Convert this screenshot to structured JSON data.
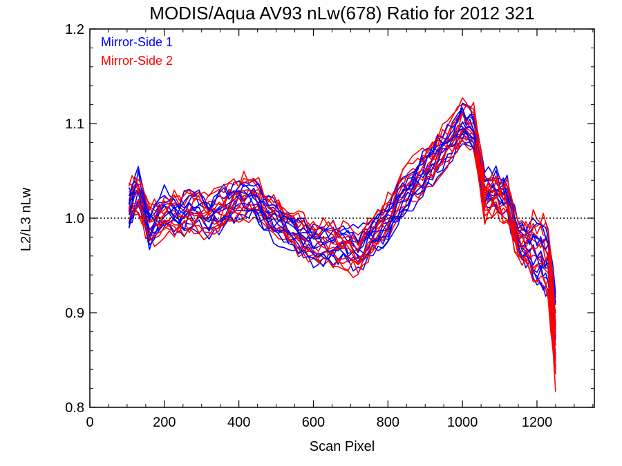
{
  "chart_data": {
    "type": "line",
    "title": "MODIS/Aqua AV93 nLw(678) Ratio for 2012 321",
    "xlabel": "Scan Pixel",
    "ylabel": "L2/L3 nLw",
    "xlim": [
      0,
      1354
    ],
    "ylim": [
      0.8,
      1.2
    ],
    "x_ticks": [
      "0",
      "200",
      "400",
      "600",
      "800",
      "1000",
      "1200"
    ],
    "y_ticks": [
      "0.8",
      "0.9",
      "1.0",
      "1.1",
      "1.2"
    ],
    "reference_line": 1.0,
    "legend_placement": "top-left",
    "x": [
      105,
      130,
      160,
      200,
      240,
      280,
      320,
      360,
      400,
      440,
      480,
      520,
      560,
      600,
      640,
      680,
      720,
      760,
      800,
      840,
      880,
      920,
      960,
      1000,
      1030,
      1060,
      1090,
      1120,
      1150,
      1180,
      1210,
      1230,
      1250
    ],
    "series": [
      {
        "name": "Mirror-Side 1",
        "color": "#0000ff",
        "curves": 12,
        "values": [
          1.01,
          1.03,
          0.99,
          1.01,
          1.0,
          1.01,
          1.0,
          1.01,
          1.02,
          1.02,
          1.0,
          0.99,
          0.98,
          0.97,
          0.97,
          0.975,
          0.965,
          0.98,
          0.995,
          1.02,
          1.04,
          1.06,
          1.075,
          1.1,
          1.09,
          1.03,
          1.03,
          1.02,
          0.98,
          0.97,
          0.96,
          0.95,
          0.89
        ],
        "spread": 0.018
      },
      {
        "name": "Mirror-Side 2",
        "color": "#ff0000",
        "curves": 12,
        "values": [
          1.015,
          1.025,
          0.995,
          1.0,
          1.005,
          1.005,
          1.005,
          1.01,
          1.02,
          1.025,
          1.005,
          0.995,
          0.985,
          0.975,
          0.972,
          0.97,
          0.96,
          0.985,
          1.0,
          1.03,
          1.045,
          1.06,
          1.08,
          1.1,
          1.095,
          1.02,
          1.025,
          1.015,
          0.975,
          0.97,
          0.965,
          0.955,
          0.86
        ],
        "spread": 0.02
      }
    ]
  }
}
